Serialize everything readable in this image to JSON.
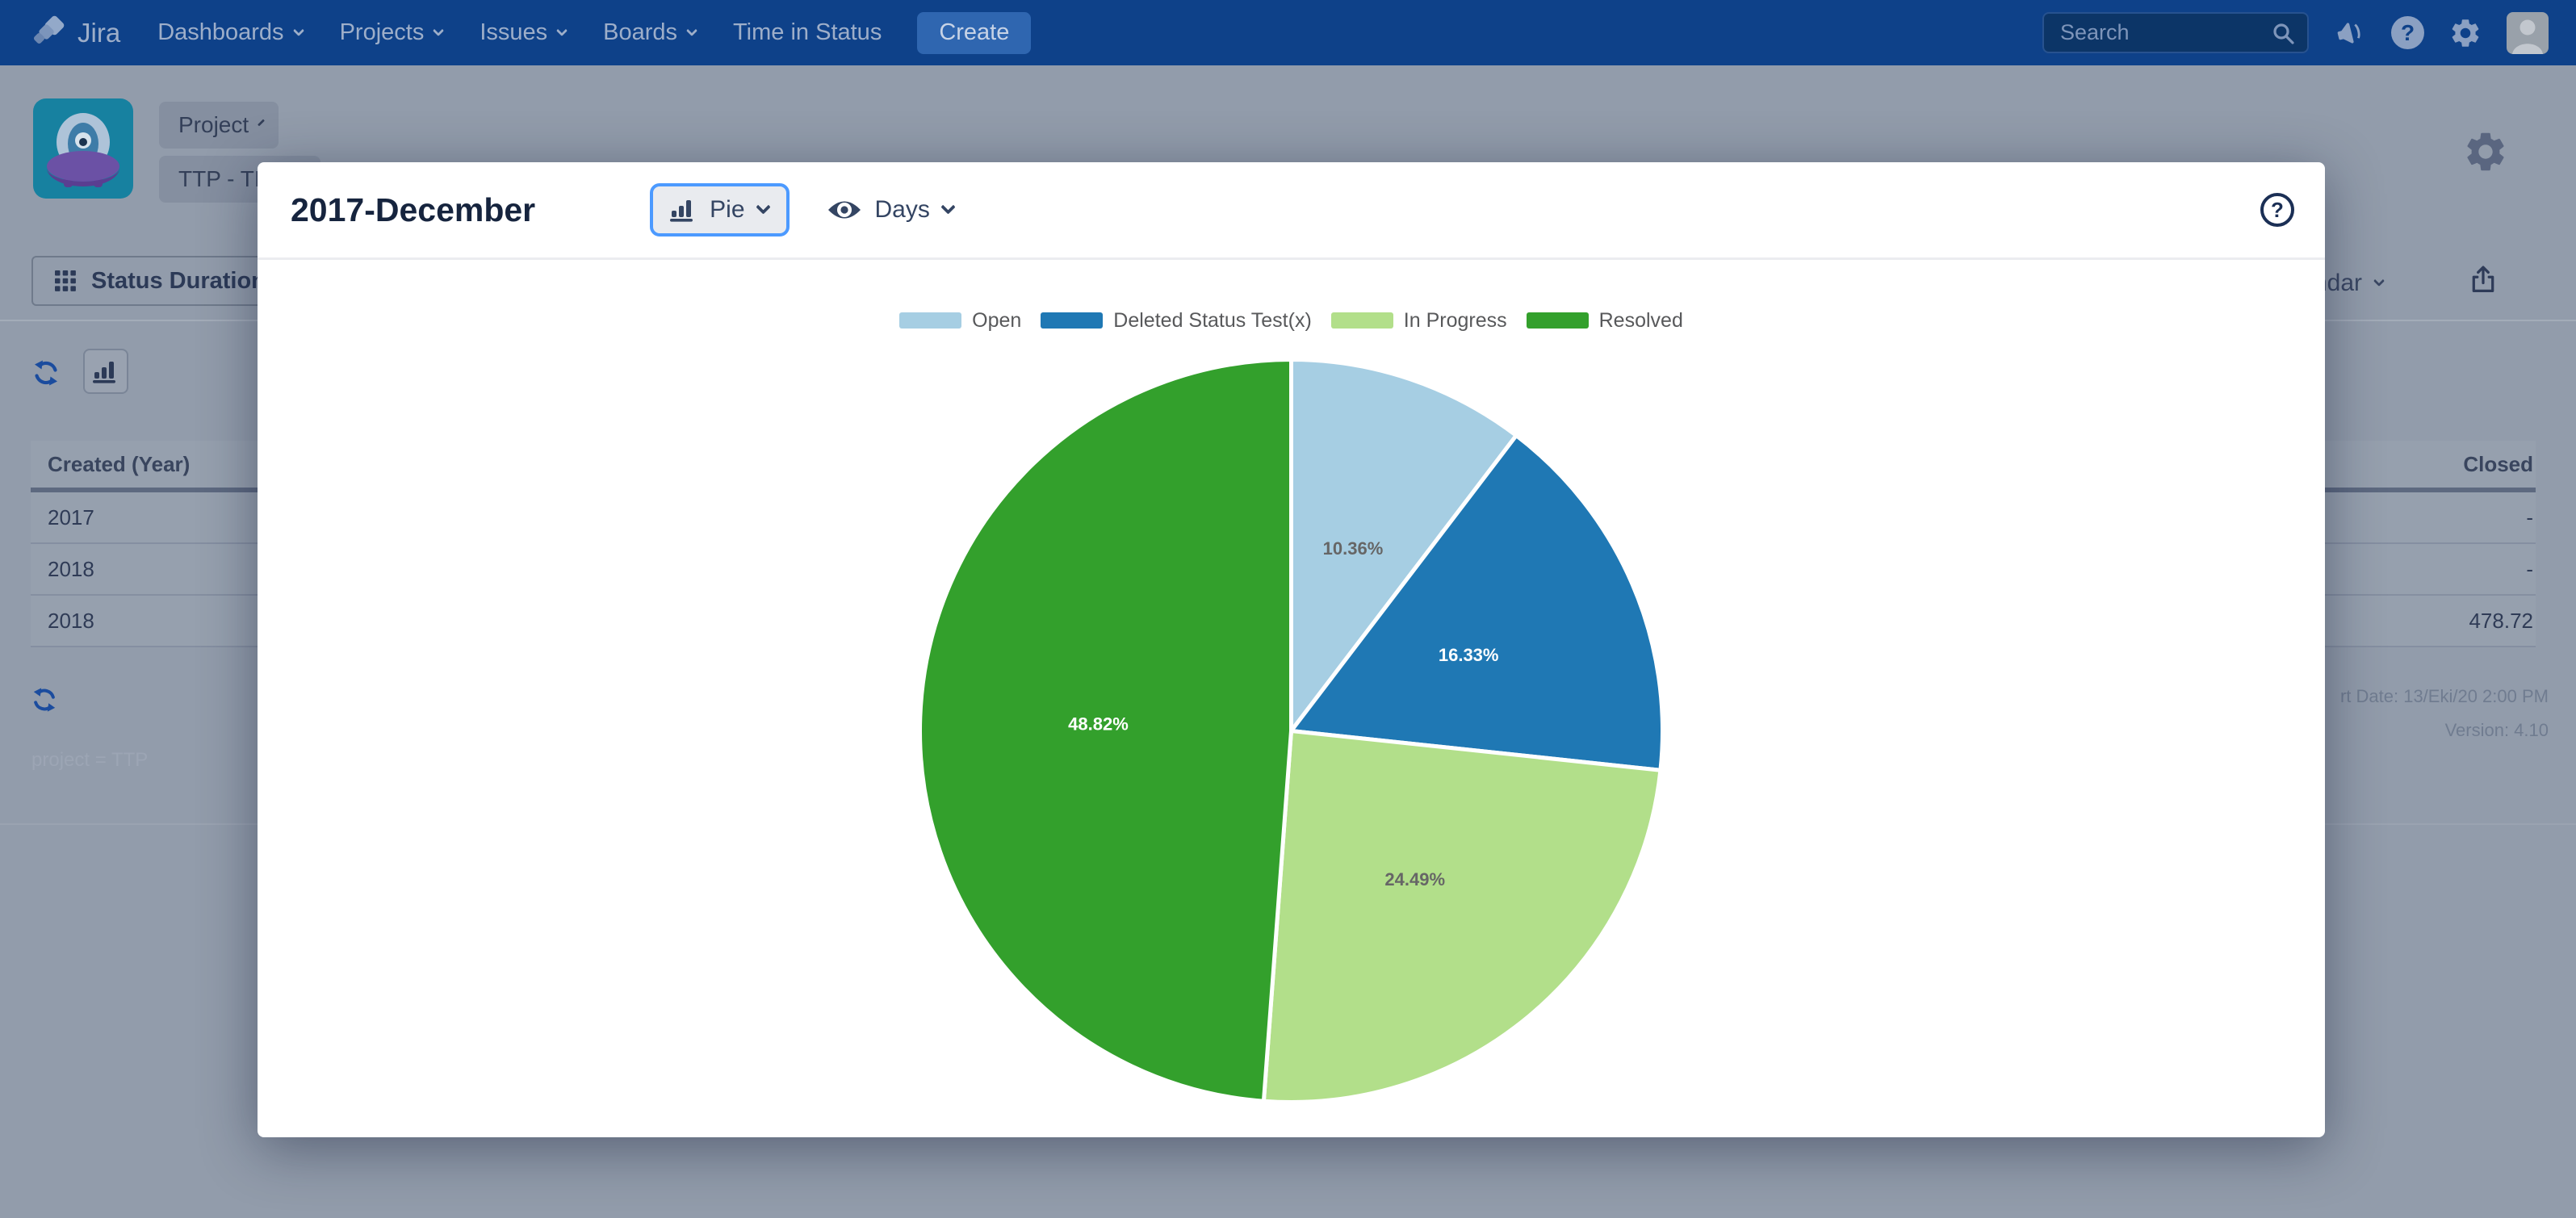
{
  "nav": {
    "brand": "Jira",
    "items": [
      {
        "label": "Dashboards",
        "dropdown": true
      },
      {
        "label": "Projects",
        "dropdown": true
      },
      {
        "label": "Issues",
        "dropdown": true
      },
      {
        "label": "Boards",
        "dropdown": true
      },
      {
        "label": "Time in Status",
        "dropdown": false
      }
    ],
    "create_label": "Create",
    "search_placeholder": "Search",
    "help_glyph": "?"
  },
  "page": {
    "project_switcher_label": "Project",
    "project_name": "TTP - TIS",
    "tab_label": "Status Duration",
    "calendar_partial_label": "ndar",
    "filter_query": "project = TTP",
    "report_date": "rt Date: 13/Eki/20 2:00 PM",
    "version": "Version: 4.10",
    "table": {
      "columns": [
        "Created (Year)",
        "Closed"
      ],
      "rows": [
        [
          "2017",
          "-"
        ],
        [
          "2018",
          "-"
        ],
        [
          "2018",
          "478.72"
        ]
      ]
    }
  },
  "modal": {
    "title": "2017-December",
    "chart_type_label": "Pie",
    "unit_label": "Days",
    "help_glyph": "?",
    "focus_color": "#4C9AFF"
  },
  "chart_data": {
    "type": "pie",
    "title": "2017-December",
    "unit": "Days",
    "labels": [
      "Open",
      "Deleted Status Test(x)",
      "In Progress",
      "Resolved"
    ],
    "values": [
      10.36,
      16.33,
      24.49,
      48.82
    ],
    "colors": [
      "#A6CEE3",
      "#1F78B4",
      "#B2DF8A",
      "#33A02C"
    ],
    "slice_label_colors": [
      "#666666",
      "#FFFFFF",
      "#666666",
      "#FFFFFF"
    ],
    "value_suffix": "%",
    "legend_position": "top",
    "start_angle_deg": 0,
    "direction": "clockwise"
  }
}
